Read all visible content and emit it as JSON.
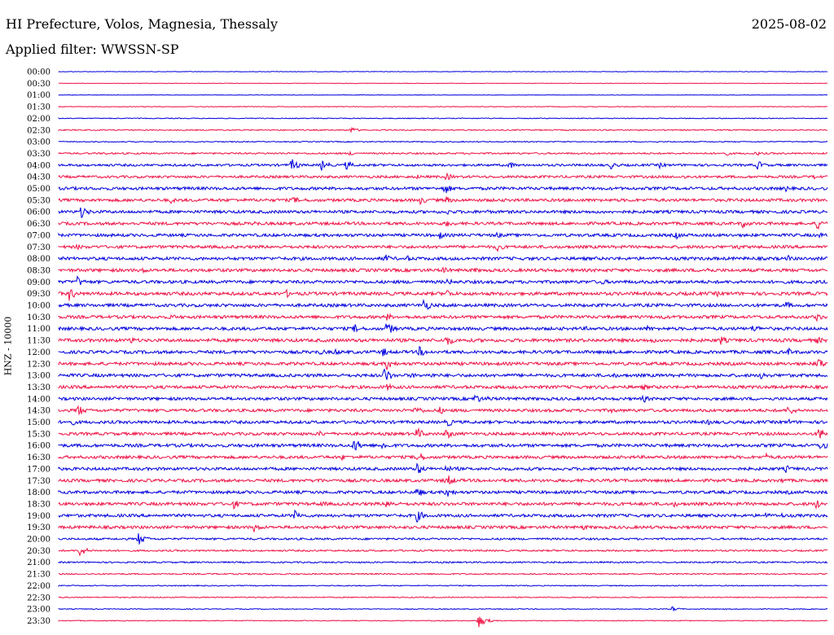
{
  "header": {
    "title": "HI Prefecture, Volos, Magnesia, Thessaly",
    "date": "2025-08-02",
    "filter": "Applied filter: WWSSN-SP",
    "channel": "HNZ - 10000"
  },
  "colors": {
    "trace_a": "#0000dd",
    "trace_b": "#ee1144"
  },
  "chart_data": {
    "type": "line",
    "title": "HI Prefecture, Volos, Magnesia, Thessaly",
    "ylabel": "HNZ - 10000",
    "row_labels": [
      "00:00",
      "00:30",
      "01:00",
      "01:30",
      "02:00",
      "02:30",
      "03:00",
      "03:30",
      "04:00",
      "04:30",
      "05:00",
      "05:30",
      "06:00",
      "06:30",
      "07:00",
      "07:30",
      "08:00",
      "08:30",
      "09:00",
      "09:30",
      "10:00",
      "10:30",
      "11:00",
      "11:30",
      "12:00",
      "12:30",
      "13:00",
      "13:30",
      "14:00",
      "14:30",
      "15:00",
      "15:30",
      "16:00",
      "16:30",
      "17:00",
      "17:30",
      "18:00",
      "18:30",
      "19:00",
      "19:30",
      "20:00",
      "20:30",
      "21:00",
      "21:30",
      "22:00",
      "22:30",
      "23:00",
      "23:30"
    ],
    "row_colors": [
      "blue",
      "red",
      "blue",
      "red",
      "blue",
      "red",
      "blue",
      "red",
      "blue",
      "red",
      "blue",
      "red",
      "blue",
      "red",
      "blue",
      "red",
      "blue",
      "red",
      "blue",
      "red",
      "blue",
      "red",
      "blue",
      "red",
      "blue",
      "red",
      "blue",
      "red",
      "blue",
      "red",
      "blue",
      "red",
      "blue",
      "red",
      "blue",
      "red",
      "blue",
      "red",
      "blue",
      "red",
      "blue",
      "red",
      "blue",
      "red",
      "blue",
      "red",
      "blue",
      "red"
    ],
    "noise_level": [
      0.3,
      0.3,
      0.3,
      0.4,
      0.5,
      0.7,
      0.6,
      1.0,
      1.4,
      1.5,
      1.8,
      1.8,
      1.8,
      1.8,
      1.8,
      1.8,
      1.9,
      1.9,
      1.9,
      2.0,
      1.9,
      1.9,
      1.9,
      2.0,
      1.9,
      1.9,
      1.9,
      1.9,
      1.8,
      1.8,
      1.8,
      1.8,
      1.9,
      1.8,
      1.8,
      1.8,
      1.8,
      1.9,
      1.8,
      1.8,
      1.2,
      1.0,
      0.9,
      0.8,
      0.6,
      0.6,
      0.5,
      0.5
    ],
    "bursts": [
      [],
      [],
      [],
      [],
      [],
      [
        [
          430,
          4
        ]
      ],
      [],
      [
        [
          127,
          2
        ],
        [
          430,
          3
        ],
        [
          888,
          4
        ],
        [
          928,
          3
        ]
      ],
      [
        [
          358,
          8
        ],
        [
          395,
          7
        ],
        [
          425,
          6
        ],
        [
          625,
          5
        ],
        [
          750,
          5
        ],
        [
          810,
          4
        ],
        [
          930,
          6
        ]
      ],
      [
        [
          510,
          4
        ],
        [
          548,
          5
        ],
        [
          840,
          3
        ],
        [
          1000,
          3
        ]
      ],
      [
        [
          228,
          3
        ],
        [
          545,
          8
        ],
        [
          965,
          4
        ]
      ],
      [
        [
          210,
          4
        ],
        [
          360,
          5
        ],
        [
          515,
          6
        ],
        [
          548,
          5
        ]
      ],
      [
        [
          100,
          8
        ],
        [
          550,
          4
        ],
        [
          578,
          3
        ],
        [
          598,
          3
        ]
      ],
      [
        [
          312,
          4
        ],
        [
          548,
          5
        ],
        [
          912,
          6
        ],
        [
          1003,
          8
        ]
      ],
      [
        [
          540,
          5
        ],
        [
          610,
          4
        ],
        [
          830,
          5
        ],
        [
          1005,
          4
        ]
      ],
      [
        [
          95,
          4
        ],
        [
          610,
          6
        ],
        [
          905,
          4
        ]
      ],
      [
        [
          472,
          6
        ],
        [
          500,
          4
        ],
        [
          968,
          4
        ]
      ],
      [
        [
          175,
          4
        ],
        [
          545,
          5
        ],
        [
          582,
          4
        ],
        [
          868,
          5
        ]
      ],
      [
        [
          95,
          7
        ],
        [
          550,
          5
        ],
        [
          740,
          4
        ],
        [
          1005,
          3
        ]
      ],
      [
        [
          85,
          9
        ],
        [
          352,
          5
        ],
        [
          548,
          6
        ],
        [
          880,
          4
        ]
      ],
      [
        [
          520,
          9
        ],
        [
          965,
          5
        ]
      ],
      [
        [
          210,
          4
        ],
        [
          475,
          5
        ],
        [
          590,
          3
        ],
        [
          812,
          4
        ],
        [
          1003,
          5
        ]
      ],
      [
        [
          435,
          6
        ],
        [
          475,
          9
        ],
        [
          720,
          3
        ],
        [
          795,
          4
        ],
        [
          925,
          6
        ]
      ],
      [
        [
          160,
          5
        ],
        [
          548,
          8
        ],
        [
          800,
          4
        ],
        [
          885,
          6
        ],
        [
          1003,
          5
        ]
      ],
      [
        [
          393,
          4
        ],
        [
          410,
          5
        ],
        [
          470,
          6
        ],
        [
          515,
          7
        ],
        [
          968,
          5
        ]
      ],
      [
        [
          360,
          3
        ],
        [
          475,
          8
        ],
        [
          545,
          4
        ],
        [
          1003,
          9
        ]
      ],
      [
        [
          472,
          10
        ],
        [
          505,
          4
        ],
        [
          528,
          4
        ],
        [
          752,
          4
        ],
        [
          935,
          6
        ]
      ],
      [
        [
          475,
          5
        ],
        [
          790,
          4
        ]
      ],
      [
        [
          583,
          7
        ],
        [
          600,
          4
        ],
        [
          790,
          5
        ]
      ],
      [
        [
          95,
          8
        ],
        [
          510,
          7
        ],
        [
          540,
          5
        ],
        [
          750,
          4
        ],
        [
          968,
          7
        ]
      ],
      [
        [
          85,
          6
        ],
        [
          548,
          7
        ],
        [
          870,
          4
        ],
        [
          968,
          4
        ]
      ],
      [
        [
          393,
          4
        ],
        [
          512,
          8
        ],
        [
          548,
          7
        ],
        [
          1005,
          9
        ]
      ],
      [
        [
          435,
          9
        ],
        [
          470,
          6
        ],
        [
          1008,
          7
        ]
      ],
      [
        [
          420,
          4
        ],
        [
          512,
          8
        ],
        [
          940,
          5
        ]
      ],
      [
        [
          512,
          8
        ],
        [
          548,
          5
        ],
        [
          560,
          3
        ],
        [
          965,
          5
        ]
      ],
      [
        [
          390,
          4
        ],
        [
          548,
          9
        ],
        [
          960,
          4
        ]
      ],
      [
        [
          512,
          7
        ],
        [
          548,
          8
        ],
        [
          968,
          3
        ]
      ],
      [
        [
          287,
          6
        ],
        [
          395,
          4
        ],
        [
          475,
          7
        ],
        [
          828,
          4
        ],
        [
          1002,
          6
        ]
      ],
      [
        [
          362,
          7
        ],
        [
          512,
          8
        ],
        [
          940,
          4
        ],
        [
          960,
          3
        ]
      ],
      [
        [
          312,
          6
        ],
        [
          715,
          4
        ]
      ],
      [
        [
          170,
          8
        ]
      ],
      [
        [
          97,
          8
        ]
      ],
      [],
      [],
      [],
      [],
      [
        [
          825,
          3
        ]
      ],
      [
        [
          588,
          8
        ]
      ]
    ]
  }
}
